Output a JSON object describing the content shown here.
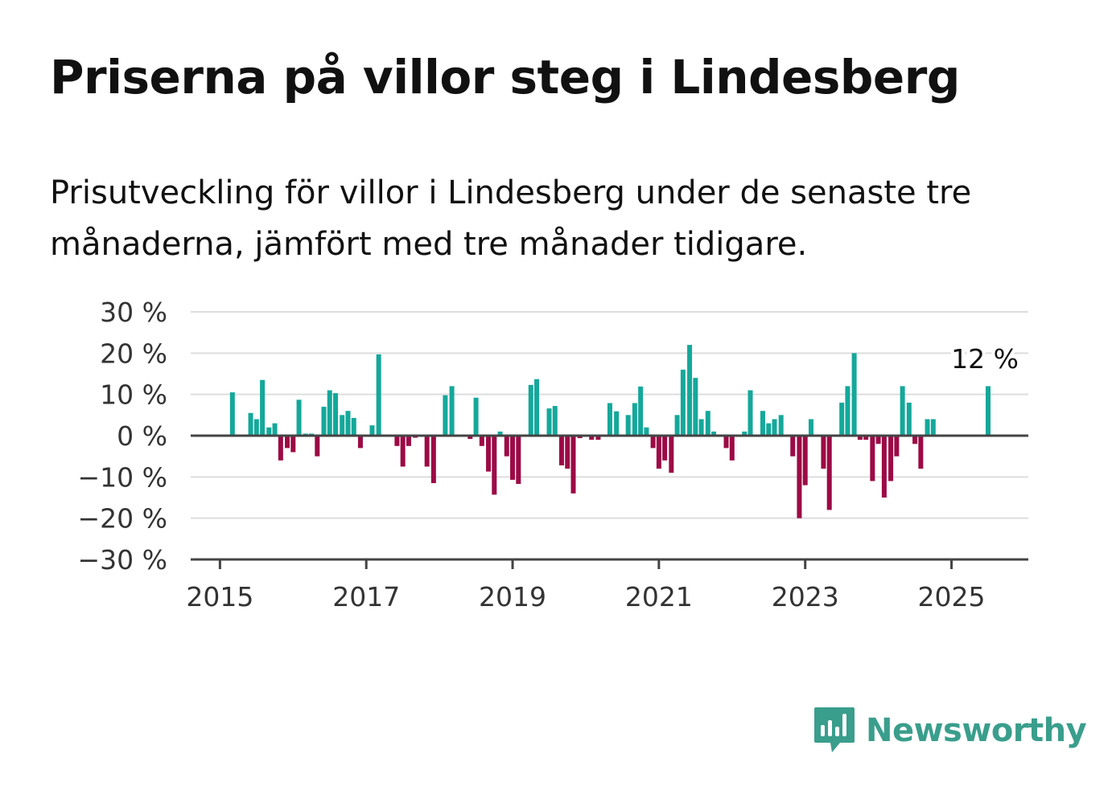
{
  "title": "Priserna på villor steg i Lindesberg",
  "subtitle": "Prisutveckling för villor i Lindesberg under de senaste tre månaderna, jämfört med tre månader tidigare.",
  "brand": {
    "name": "Newsworthy",
    "color": "#3a9e8c"
  },
  "colors": {
    "positive": "#14a89a",
    "negative": "#9c0a45",
    "grid": "#dddddd",
    "axis": "#444444"
  },
  "chart_data": {
    "type": "bar",
    "title": "",
    "xlabel": "",
    "ylabel": "",
    "ylim": [
      -30,
      30
    ],
    "y_ticks": [
      30,
      20,
      10,
      0,
      -10,
      -20,
      -30
    ],
    "y_tick_labels": [
      "30 %",
      "20 %",
      "10 %",
      "0 %",
      "−10 %",
      "−20 %",
      "−30 %"
    ],
    "x_ticks": [
      2015,
      2017,
      2019,
      2021,
      2023,
      2025
    ],
    "x_tick_labels": [
      "2015",
      "2017",
      "2019",
      "2021",
      "2023",
      "2025"
    ],
    "xlim": [
      2014.6,
      2026.05
    ],
    "grid": true,
    "annotation": {
      "x": 2025.5,
      "text": "12 %"
    },
    "series": [
      {
        "points": [
          {
            "x": 2015.17,
            "y": 10.5
          },
          {
            "x": 2015.42,
            "y": 5.5
          },
          {
            "x": 2015.5,
            "y": 4
          },
          {
            "x": 2015.58,
            "y": 13.5
          },
          {
            "x": 2015.67,
            "y": 2
          },
          {
            "x": 2015.75,
            "y": 3
          },
          {
            "x": 2015.83,
            "y": -6
          },
          {
            "x": 2015.92,
            "y": -3
          },
          {
            "x": 2016.0,
            "y": -4
          },
          {
            "x": 2016.08,
            "y": 8.7
          },
          {
            "x": 2016.17,
            "y": 0.5
          },
          {
            "x": 2016.25,
            "y": 0.5
          },
          {
            "x": 2016.33,
            "y": -5
          },
          {
            "x": 2016.42,
            "y": 7
          },
          {
            "x": 2016.5,
            "y": 11
          },
          {
            "x": 2016.58,
            "y": 10.3
          },
          {
            "x": 2016.67,
            "y": 5
          },
          {
            "x": 2016.75,
            "y": 6
          },
          {
            "x": 2016.83,
            "y": 4.3
          },
          {
            "x": 2016.92,
            "y": -3
          },
          {
            "x": 2017.08,
            "y": 2.5
          },
          {
            "x": 2017.17,
            "y": 19.7
          },
          {
            "x": 2017.42,
            "y": -2.5
          },
          {
            "x": 2017.5,
            "y": -7.5
          },
          {
            "x": 2017.58,
            "y": -2.5
          },
          {
            "x": 2017.67,
            "y": -0.5
          },
          {
            "x": 2017.83,
            "y": -7.5
          },
          {
            "x": 2017.92,
            "y": -11.5
          },
          {
            "x": 2018.08,
            "y": 9.8
          },
          {
            "x": 2018.17,
            "y": 12
          },
          {
            "x": 2018.42,
            "y": -0.8
          },
          {
            "x": 2018.5,
            "y": 9.2
          },
          {
            "x": 2018.58,
            "y": -2.5
          },
          {
            "x": 2018.67,
            "y": -8.7
          },
          {
            "x": 2018.75,
            "y": -14.3
          },
          {
            "x": 2018.83,
            "y": 1
          },
          {
            "x": 2018.92,
            "y": -5
          },
          {
            "x": 2019.0,
            "y": -10.7
          },
          {
            "x": 2019.08,
            "y": -11.7
          },
          {
            "x": 2019.17,
            "y": 0.3
          },
          {
            "x": 2019.25,
            "y": 12.3
          },
          {
            "x": 2019.33,
            "y": 13.7
          },
          {
            "x": 2019.5,
            "y": 6.6
          },
          {
            "x": 2019.58,
            "y": 7.2
          },
          {
            "x": 2019.67,
            "y": -7.2
          },
          {
            "x": 2019.75,
            "y": -8
          },
          {
            "x": 2019.83,
            "y": -14
          },
          {
            "x": 2019.92,
            "y": -0.6
          },
          {
            "x": 2020.08,
            "y": -1
          },
          {
            "x": 2020.17,
            "y": -1
          },
          {
            "x": 2020.33,
            "y": 7.9
          },
          {
            "x": 2020.42,
            "y": 5.9
          },
          {
            "x": 2020.58,
            "y": 5
          },
          {
            "x": 2020.67,
            "y": 7.9
          },
          {
            "x": 2020.75,
            "y": 11.9
          },
          {
            "x": 2020.83,
            "y": 2
          },
          {
            "x": 2020.92,
            "y": -3
          },
          {
            "x": 2021.0,
            "y": -8
          },
          {
            "x": 2021.08,
            "y": -6
          },
          {
            "x": 2021.17,
            "y": -9
          },
          {
            "x": 2021.25,
            "y": 5
          },
          {
            "x": 2021.33,
            "y": 16
          },
          {
            "x": 2021.42,
            "y": 22
          },
          {
            "x": 2021.5,
            "y": 14
          },
          {
            "x": 2021.58,
            "y": 4
          },
          {
            "x": 2021.67,
            "y": 6
          },
          {
            "x": 2021.75,
            "y": 1
          },
          {
            "x": 2021.92,
            "y": -3
          },
          {
            "x": 2022.0,
            "y": -6
          },
          {
            "x": 2022.17,
            "y": 1
          },
          {
            "x": 2022.25,
            "y": 11
          },
          {
            "x": 2022.42,
            "y": 6
          },
          {
            "x": 2022.5,
            "y": 3
          },
          {
            "x": 2022.58,
            "y": 4
          },
          {
            "x": 2022.67,
            "y": 5
          },
          {
            "x": 2022.83,
            "y": -5
          },
          {
            "x": 2022.92,
            "y": -20
          },
          {
            "x": 2023.0,
            "y": -12
          },
          {
            "x": 2023.08,
            "y": 4
          },
          {
            "x": 2023.25,
            "y": -8
          },
          {
            "x": 2023.33,
            "y": -18
          },
          {
            "x": 2023.5,
            "y": 8
          },
          {
            "x": 2023.58,
            "y": 12
          },
          {
            "x": 2023.67,
            "y": 20
          },
          {
            "x": 2023.75,
            "y": -1
          },
          {
            "x": 2023.83,
            "y": -1
          },
          {
            "x": 2023.92,
            "y": -11
          },
          {
            "x": 2024.0,
            "y": -2
          },
          {
            "x": 2024.08,
            "y": -15
          },
          {
            "x": 2024.17,
            "y": -11
          },
          {
            "x": 2024.25,
            "y": -5
          },
          {
            "x": 2024.33,
            "y": 12
          },
          {
            "x": 2024.42,
            "y": 8
          },
          {
            "x": 2024.5,
            "y": -2
          },
          {
            "x": 2024.58,
            "y": -8
          },
          {
            "x": 2024.67,
            "y": 4
          },
          {
            "x": 2024.75,
            "y": 4
          },
          {
            "x": 2025.5,
            "y": 12
          }
        ]
      }
    ]
  }
}
